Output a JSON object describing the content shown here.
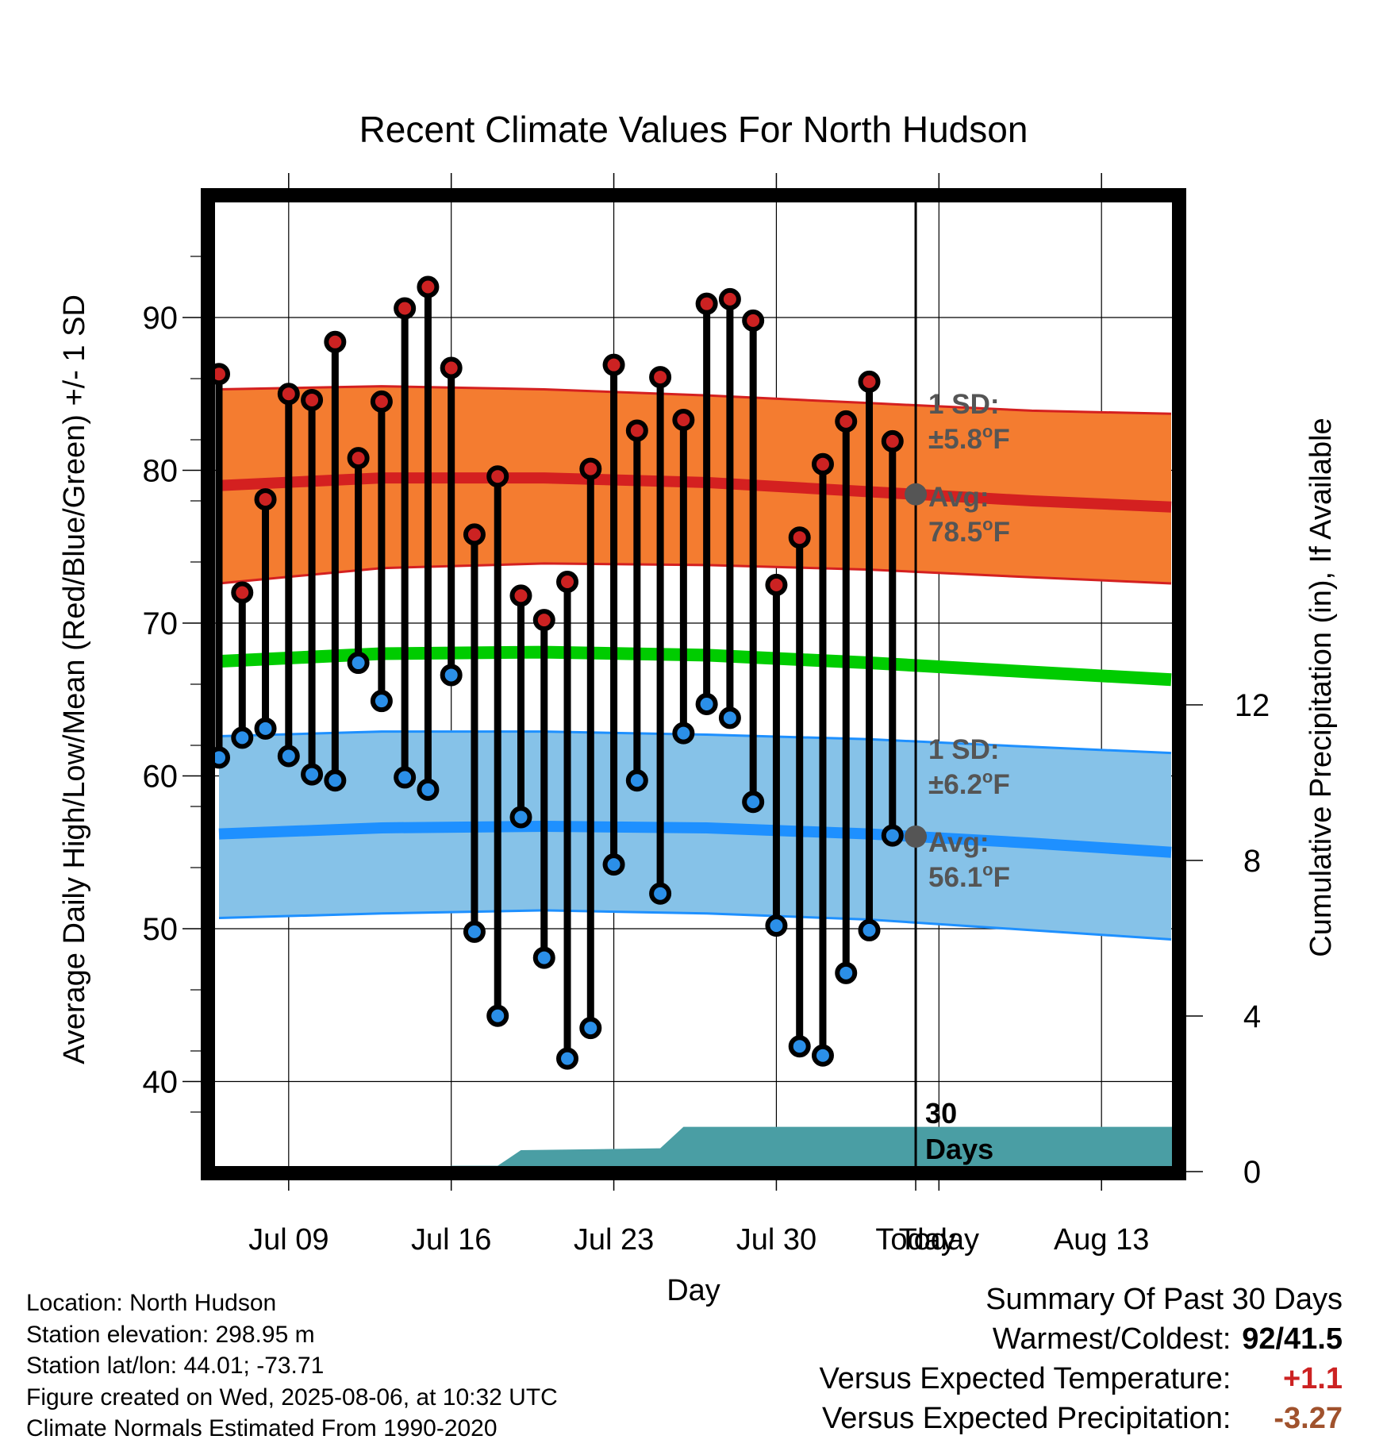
{
  "chart_data": {
    "type": "line",
    "title": "Recent Climate Values For North Hudson",
    "xlabel": "Day",
    "ylabel": "Average Daily High/Low/Mean (Red/Blue/Green) +/- 1 SD",
    "y2label": "Cumulative Precipitation (in), If Available",
    "x_tick_labels": [
      "Jul 09",
      "Jul 16",
      "Jul 23",
      "Jul 30",
      "Today",
      "Aug 13"
    ],
    "y_ticks": [
      40,
      50,
      60,
      70,
      80,
      90
    ],
    "y2_ticks": [
      0,
      4,
      8,
      12
    ],
    "ylim": [
      34,
      98
    ],
    "y2lim": [
      0,
      24
    ],
    "x_range_days": [
      "2025-07-06",
      "2025-08-16"
    ],
    "highs": [
      {
        "date": "2025-07-06",
        "value": 86.3
      },
      {
        "date": "2025-07-07",
        "value": 72.0
      },
      {
        "date": "2025-07-08",
        "value": 78.1
      },
      {
        "date": "2025-07-09",
        "value": 85.0
      },
      {
        "date": "2025-07-10",
        "value": 84.6
      },
      {
        "date": "2025-07-11",
        "value": 88.4
      },
      {
        "date": "2025-07-12",
        "value": 80.8
      },
      {
        "date": "2025-07-13",
        "value": 84.5
      },
      {
        "date": "2025-07-14",
        "value": 90.6
      },
      {
        "date": "2025-07-15",
        "value": 92.0
      },
      {
        "date": "2025-07-16",
        "value": 86.7
      },
      {
        "date": "2025-07-17",
        "value": 75.8
      },
      {
        "date": "2025-07-18",
        "value": 79.6
      },
      {
        "date": "2025-07-19",
        "value": 71.8
      },
      {
        "date": "2025-07-20",
        "value": 70.2
      },
      {
        "date": "2025-07-21",
        "value": 72.7
      },
      {
        "date": "2025-07-22",
        "value": 80.1
      },
      {
        "date": "2025-07-23",
        "value": 86.9
      },
      {
        "date": "2025-07-24",
        "value": 82.6
      },
      {
        "date": "2025-07-25",
        "value": 86.1
      },
      {
        "date": "2025-07-26",
        "value": 83.3
      },
      {
        "date": "2025-07-27",
        "value": 90.9
      },
      {
        "date": "2025-07-28",
        "value": 91.2
      },
      {
        "date": "2025-07-29",
        "value": 89.8
      },
      {
        "date": "2025-07-30",
        "value": 72.5
      },
      {
        "date": "2025-07-31",
        "value": 75.6
      },
      {
        "date": "2025-08-01",
        "value": 80.4
      },
      {
        "date": "2025-08-02",
        "value": 83.2
      },
      {
        "date": "2025-08-03",
        "value": 85.8
      },
      {
        "date": "2025-08-04",
        "value": 81.9
      }
    ],
    "lows": [
      {
        "date": "2025-07-06",
        "value": 61.2
      },
      {
        "date": "2025-07-07",
        "value": 62.5
      },
      {
        "date": "2025-07-08",
        "value": 63.1
      },
      {
        "date": "2025-07-09",
        "value": 61.3
      },
      {
        "date": "2025-07-10",
        "value": 60.1
      },
      {
        "date": "2025-07-11",
        "value": 59.7
      },
      {
        "date": "2025-07-12",
        "value": 67.4
      },
      {
        "date": "2025-07-13",
        "value": 64.9
      },
      {
        "date": "2025-07-14",
        "value": 59.9
      },
      {
        "date": "2025-07-15",
        "value": 59.1
      },
      {
        "date": "2025-07-16",
        "value": 66.6
      },
      {
        "date": "2025-07-17",
        "value": 49.8
      },
      {
        "date": "2025-07-18",
        "value": 44.3
      },
      {
        "date": "2025-07-19",
        "value": 57.3
      },
      {
        "date": "2025-07-20",
        "value": 48.1
      },
      {
        "date": "2025-07-21",
        "value": 41.5
      },
      {
        "date": "2025-07-22",
        "value": 43.5
      },
      {
        "date": "2025-07-23",
        "value": 54.2
      },
      {
        "date": "2025-07-24",
        "value": 59.7
      },
      {
        "date": "2025-07-25",
        "value": 52.3
      },
      {
        "date": "2025-07-26",
        "value": 62.8
      },
      {
        "date": "2025-07-27",
        "value": 64.7
      },
      {
        "date": "2025-07-28",
        "value": 63.8
      },
      {
        "date": "2025-07-29",
        "value": 58.3
      },
      {
        "date": "2025-07-30",
        "value": 50.2
      },
      {
        "date": "2025-07-31",
        "value": 42.3
      },
      {
        "date": "2025-08-01",
        "value": 41.7
      },
      {
        "date": "2025-08-02",
        "value": 47.1
      },
      {
        "date": "2025-08-03",
        "value": 49.9
      },
      {
        "date": "2025-08-04",
        "value": 56.1
      }
    ],
    "normal_high": {
      "dates": [
        "2025-07-06",
        "2025-07-13",
        "2025-07-20",
        "2025-07-27",
        "2025-08-03",
        "2025-08-10",
        "2025-08-16"
      ],
      "mean": [
        79.0,
        79.5,
        79.5,
        79.2,
        78.6,
        78.0,
        77.6
      ],
      "upper": [
        85.3,
        85.5,
        85.3,
        84.9,
        84.4,
        83.9,
        83.7
      ],
      "lower": [
        72.6,
        73.6,
        73.9,
        73.8,
        73.5,
        73.0,
        72.6
      ],
      "color": "#f47c30"
    },
    "normal_mean": {
      "dates": [
        "2025-07-06",
        "2025-07-13",
        "2025-07-20",
        "2025-07-27",
        "2025-08-03",
        "2025-08-10",
        "2025-08-16"
      ],
      "mean": [
        67.5,
        68.0,
        68.1,
        67.9,
        67.4,
        66.8,
        66.3
      ],
      "color": "#00cc00"
    },
    "normal_low": {
      "dates": [
        "2025-07-06",
        "2025-07-13",
        "2025-07-20",
        "2025-07-27",
        "2025-08-03",
        "2025-08-10",
        "2025-08-16"
      ],
      "mean": [
        56.2,
        56.6,
        56.7,
        56.6,
        56.2,
        55.6,
        55.0
      ],
      "upper": [
        62.6,
        62.9,
        62.9,
        62.7,
        62.4,
        61.9,
        61.5
      ],
      "lower": [
        50.7,
        51.0,
        51.2,
        51.0,
        50.6,
        49.9,
        49.3
      ],
      "color": "#1e90ff"
    },
    "precipitation": {
      "points": [
        {
          "date": "2025-07-06",
          "value": 0.0
        },
        {
          "date": "2025-07-15",
          "value": 0.0
        },
        {
          "date": "2025-07-16",
          "value": 0.15
        },
        {
          "date": "2025-07-18",
          "value": 0.15
        },
        {
          "date": "2025-07-19",
          "value": 0.55
        },
        {
          "date": "2025-07-25",
          "value": 0.6
        },
        {
          "date": "2025-07-26",
          "value": 1.15
        },
        {
          "date": "2025-08-16",
          "value": 1.15
        }
      ],
      "color": "#4a9ea4"
    },
    "today_date": "2025-08-05",
    "annotations": {
      "high_sd_label": "1 SD:",
      "high_sd_value": "±5.8",
      "high_avg_label": "Avg:",
      "high_avg_value": "78.5",
      "low_sd_label": "1 SD:",
      "low_sd_value": "±6.2",
      "low_avg_label": "Avg:",
      "low_avg_value": "56.1",
      "degree_symbol": "o",
      "unit": "F",
      "days_label_1": "30",
      "days_label_2": "Days"
    },
    "colors": {
      "high_marker": "#cc2222",
      "low_marker": "#2b8fe8",
      "annotation_text": "#555555",
      "avg_marker": "#555555"
    }
  },
  "info": {
    "location": "Location: North Hudson",
    "elevation": "Station elevation: 298.95 m",
    "latlon": "Station lat/lon: 44.01; -73.71",
    "created": "Figure created on Wed, 2025-08-06, at 10:32 UTC",
    "normals": "Climate Normals Estimated From 1990-2020"
  },
  "summary": {
    "title": "Summary Of Past 30 Days",
    "warm_cold_label": "Warmest/Coldest:",
    "warm_cold_value": "92/41.5",
    "temp_label": "Versus Expected Temperature:",
    "temp_value": "+1.1",
    "precip_label": "Versus Expected Precipitation:",
    "precip_value": "-3.27"
  }
}
